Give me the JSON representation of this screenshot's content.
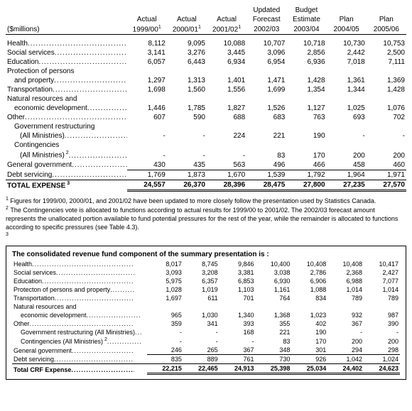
{
  "main": {
    "unitLabel": "($millions)",
    "headers": {
      "c1a": "Actual",
      "c1b": "1999/00",
      "c2a": "Actual",
      "c2b": "2000/01",
      "c3a": "Actual",
      "c3b": "2001/02",
      "c4a": "Updated",
      "c4b": "Forecast",
      "c4c": "2002/03",
      "c5a": "Budget",
      "c5b": "Estimate",
      "c5c": "2003/04",
      "c6a": "Plan",
      "c6b": "2004/05",
      "c7a": "Plan",
      "c7b": "2005/06"
    },
    "sup1": "1",
    "rows": {
      "health": {
        "l": "Health",
        "v": [
          "8,112",
          "9,095",
          "10,088",
          "10,707",
          "10,718",
          "10,730",
          "10,753"
        ]
      },
      "social": {
        "l": "Social services",
        "v": [
          "3,141",
          "3,276",
          "3,445",
          "3,096",
          "2,856",
          "2,442",
          "2,500"
        ]
      },
      "edu": {
        "l": "Education",
        "v": [
          "6,057",
          "6,443",
          "6,934",
          "6,954",
          "6,936",
          "7,018",
          "7,111"
        ]
      },
      "prot1": {
        "l": "Protection of persons"
      },
      "prot2": {
        "l": "and property",
        "v": [
          "1,297",
          "1,313",
          "1,401",
          "1,471",
          "1,428",
          "1,361",
          "1,369"
        ]
      },
      "trans": {
        "l": "Transportation",
        "v": [
          "1,698",
          "1,560",
          "1,556",
          "1,699",
          "1,354",
          "1,344",
          "1,428"
        ]
      },
      "nat1": {
        "l": "Natural resources and"
      },
      "nat2": {
        "l": "economic development",
        "v": [
          "1,446",
          "1,785",
          "1,827",
          "1,526",
          "1,127",
          "1,025",
          "1,076"
        ]
      },
      "other": {
        "l": "Other",
        "v": [
          "607",
          "590",
          "688",
          "683",
          "763",
          "693",
          "702"
        ]
      },
      "gov1": {
        "l": "Government restructuring"
      },
      "gov2": {
        "l": "(All Ministries)",
        "v": [
          "-",
          "-",
          "224",
          "221",
          "190",
          "-",
          "-"
        ]
      },
      "cont1": {
        "l": "Contingencies"
      },
      "cont2": {
        "l": "(All Ministries)",
        "sup": "2",
        "v": [
          "-",
          "-",
          "-",
          "83",
          "170",
          "200",
          "200"
        ]
      },
      "gen": {
        "l": "General government",
        "v": [
          "430",
          "435",
          "563",
          "496",
          "466",
          "458",
          "460"
        ]
      },
      "debt": {
        "l": "Debt servicing",
        "v": [
          "1,769",
          "1,873",
          "1,670",
          "1,539",
          "1,792",
          "1,964",
          "1,971"
        ]
      },
      "total": {
        "l": "TOTAL EXPENSE",
        "sup": "3",
        "v": [
          "24,557",
          "26,370",
          "28,396",
          "28,475",
          "27,800",
          "27,235",
          "27,570"
        ]
      }
    }
  },
  "footnotes": {
    "f1": "Figures for 1999/00, 2000/01, and 2001/02 have been updated to more closely follow the presentation used by Statistics Canada.",
    "f2": "The Contingencies vote is allocated to functions according to actual results for 1999/00 to 2001/02. The 2002/03 forecast amount represents the unallocated portion available to fund potential pressures for the rest of the year, while the remainder is allocated to functions according to specific pressures (see Table 4.3).",
    "n1": "1",
    "n2": "2",
    "n3": "3"
  },
  "boxed": {
    "title": "The consolidated revenue fund component of the summary presentation is :",
    "rows": {
      "health": {
        "l": "Health",
        "v": [
          "8,017",
          "8,745",
          "9,846",
          "10,400",
          "10,408",
          "10,408",
          "10,417"
        ]
      },
      "social": {
        "l": "Social services",
        "v": [
          "3,093",
          "3,208",
          "3,381",
          "3,038",
          "2,786",
          "2,368",
          "2,427"
        ]
      },
      "edu": {
        "l": "Education",
        "v": [
          "5,975",
          "6,357",
          "6,853",
          "6,930",
          "6,906",
          "6,988",
          "7,077"
        ]
      },
      "prot": {
        "l": "Protecton of persons and property",
        "v": [
          "1,028",
          "1,019",
          "1,103",
          "1,161",
          "1,088",
          "1,014",
          "1,014"
        ]
      },
      "trans": {
        "l": "Transportation",
        "v": [
          "1,697",
          "611",
          "701",
          "764",
          "834",
          "789",
          "789"
        ]
      },
      "nat1": {
        "l": "Natural resources and"
      },
      "nat2": {
        "l": "economic development",
        "v": [
          "965",
          "1,030",
          "1,340",
          "1,368",
          "1,023",
          "932",
          "987"
        ]
      },
      "other": {
        "l": "Other",
        "v": [
          "359",
          "341",
          "393",
          "355",
          "402",
          "367",
          "390"
        ]
      },
      "gov": {
        "l": "Government restructuring (All Ministries)",
        "v": [
          "-",
          "-",
          "168",
          "221",
          "190",
          "-",
          "-"
        ]
      },
      "cont": {
        "l": "Contingencies (All Ministries)",
        "sup": "2",
        "v": [
          "-",
          "-",
          "-",
          "83",
          "170",
          "200",
          "200"
        ]
      },
      "gen": {
        "l": "General government",
        "v": [
          "246",
          "265",
          "367",
          "348",
          "301",
          "294",
          "298"
        ]
      },
      "debt": {
        "l": "Debt servicing",
        "v": [
          "835",
          "889",
          "761",
          "730",
          "926",
          "1,042",
          "1,024"
        ]
      },
      "total": {
        "l": "Total CRF Expense",
        "v": [
          "22,215",
          "22,465",
          "24,913",
          "25,398",
          "25,034",
          "24,402",
          "24,623"
        ]
      }
    }
  }
}
